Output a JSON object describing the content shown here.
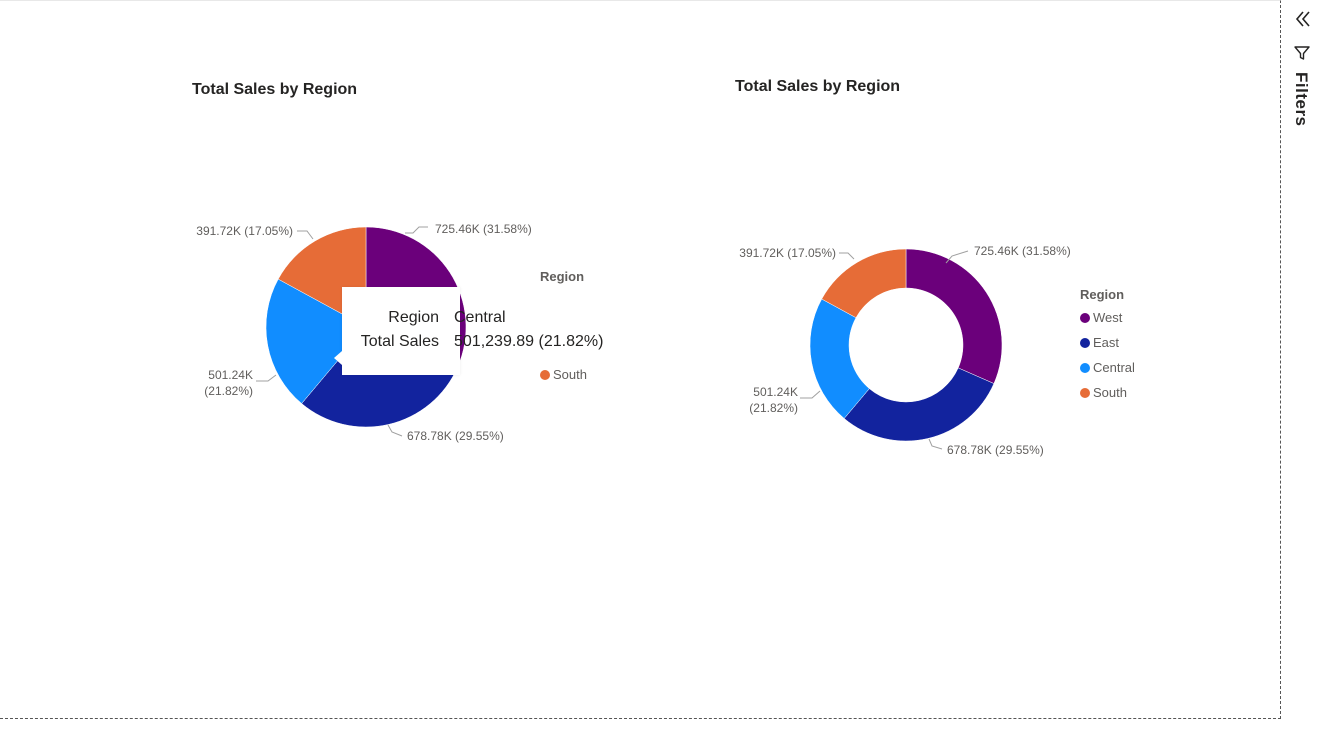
{
  "report": {
    "charts": [
      {
        "title": "Total Sales by Region",
        "legend": {
          "title": "Region",
          "visible_items": [
            {
              "label": "South",
              "color": "#E66C37"
            }
          ]
        },
        "tooltip": {
          "rows": [
            {
              "label": "Region",
              "value": "Central"
            },
            {
              "label": "Total Sales",
              "value": "501,239.89 (21.82%)"
            }
          ]
        }
      },
      {
        "title": "Total Sales by Region",
        "legend": {
          "title": "Region",
          "items": [
            {
              "label": "West",
              "color": "#6B007B"
            },
            {
              "label": "East",
              "color": "#12239E"
            },
            {
              "label": "Central",
              "color": "#118DFF"
            },
            {
              "label": "South",
              "color": "#E66C37"
            }
          ]
        }
      }
    ]
  },
  "filters_pane": {
    "label": "Filters",
    "collapse_icon": "double-chevron-left-icon",
    "funnel_icon": "filter-funnel-icon"
  },
  "chart_data": [
    {
      "type": "pie",
      "title": "Total Sales by Region",
      "legend_title": "Region",
      "categories": [
        "West",
        "East",
        "Central",
        "South"
      ],
      "values": [
        725460,
        678780,
        501240,
        391720
      ],
      "percentages": [
        31.58,
        29.55,
        21.82,
        17.05
      ],
      "data_labels": [
        "725.46K (31.58%)",
        "678.78K (29.55%)",
        "501.24K (21.82%)",
        "391.72K (17.05%)"
      ],
      "colors": [
        "#6B007B",
        "#12239E",
        "#118DFF",
        "#E66C37"
      ]
    },
    {
      "type": "pie",
      "subtype": "donut",
      "title": "Total Sales by Region",
      "legend_title": "Region",
      "categories": [
        "West",
        "East",
        "Central",
        "South"
      ],
      "values": [
        725460,
        678780,
        501240,
        391720
      ],
      "percentages": [
        31.58,
        29.55,
        21.82,
        17.05
      ],
      "data_labels": [
        "725.46K (31.58%)",
        "678.78K (29.55%)",
        "501.24K (21.82%)",
        "391.72K (17.05%)"
      ],
      "colors": [
        "#6B007B",
        "#12239E",
        "#118DFF",
        "#E66C37"
      ],
      "legend_position": "right"
    }
  ]
}
